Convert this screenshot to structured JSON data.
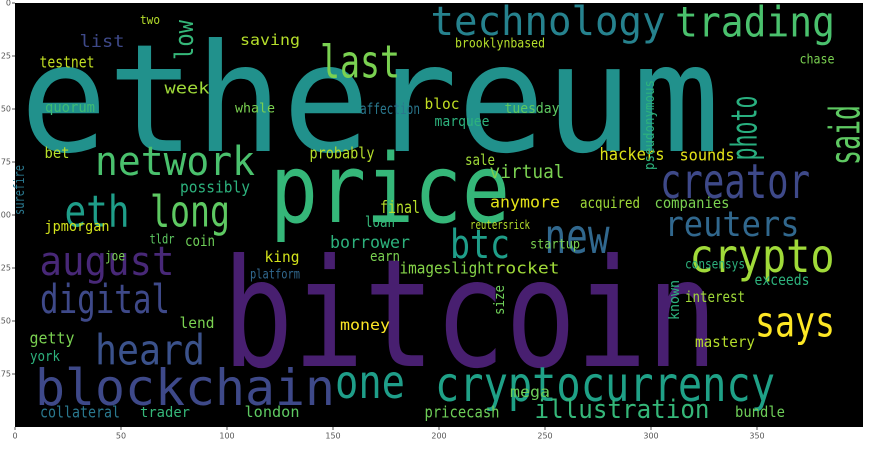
{
  "chart_data": {
    "type": "wordcloud",
    "xlim": [
      0,
      400
    ],
    "ylim": [
      200,
      0
    ],
    "xticks": [
      0,
      50,
      100,
      150,
      200,
      250,
      300,
      350
    ],
    "yticks": [
      0,
      25,
      50,
      75,
      100,
      125,
      150,
      175
    ],
    "background": "#000000",
    "words": [
      {
        "text": "ethereum",
        "color": "#21918c"
      },
      {
        "text": "bitcoin",
        "color": "#481f70"
      },
      {
        "text": "price",
        "color": "#35b779"
      },
      {
        "text": "cryptocurrency",
        "color": "#1fa187"
      },
      {
        "text": "blockchain",
        "color": "#3e4989"
      },
      {
        "text": "technology",
        "color": "#26828e"
      },
      {
        "text": "trading",
        "color": "#4ac16d"
      },
      {
        "text": "last",
        "color": "#7ad151"
      },
      {
        "text": "network",
        "color": "#4ac16d"
      },
      {
        "text": "creator",
        "color": "#3e4989"
      },
      {
        "text": "said",
        "color": "#5ec962"
      },
      {
        "text": "photo",
        "color": "#29af7f"
      },
      {
        "text": "eth",
        "color": "#1f9e89"
      },
      {
        "text": "long",
        "color": "#5ec962"
      },
      {
        "text": "new",
        "color": "#31688e"
      },
      {
        "text": "reuters",
        "color": "#31688e"
      },
      {
        "text": "btc",
        "color": "#1f9e89"
      },
      {
        "text": "crypto",
        "color": "#a0da39"
      },
      {
        "text": "august",
        "color": "#482878"
      },
      {
        "text": "digital",
        "color": "#3e4989"
      },
      {
        "text": "heard",
        "color": "#3b528b"
      },
      {
        "text": "says",
        "color": "#fde725"
      },
      {
        "text": "one",
        "color": "#1f9e89"
      },
      {
        "text": "illustration",
        "color": "#35b779"
      },
      {
        "text": "probably",
        "color": "#b5de2b"
      },
      {
        "text": "testnet",
        "color": "#c2df23"
      },
      {
        "text": "low",
        "color": "#35b779"
      },
      {
        "text": "saving",
        "color": "#b5de2b"
      },
      {
        "text": "week",
        "color": "#a0da39"
      },
      {
        "text": "whale",
        "color": "#7ad151"
      },
      {
        "text": "bloc",
        "color": "#c2df23"
      },
      {
        "text": "hackers",
        "color": "#dde318"
      },
      {
        "text": "sounds",
        "color": "#e5e419"
      },
      {
        "text": "sale",
        "color": "#a0da39"
      },
      {
        "text": "virtual",
        "color": "#7ad151"
      },
      {
        "text": "anymore",
        "color": "#e5e419"
      },
      {
        "text": "acquired",
        "color": "#a0da39"
      },
      {
        "text": "companies",
        "color": "#7ad151"
      },
      {
        "text": "final",
        "color": "#b5de2b"
      },
      {
        "text": "loan",
        "color": "#35b779"
      },
      {
        "text": "borrower",
        "color": "#2db27d"
      },
      {
        "text": "earn",
        "color": "#7ad151"
      },
      {
        "text": "king",
        "color": "#d2e21b"
      },
      {
        "text": "coin",
        "color": "#6ece58"
      },
      {
        "text": "possibly",
        "color": "#2db27d"
      },
      {
        "text": "bet",
        "color": "#b5de2b"
      },
      {
        "text": "quorum",
        "color": "#3dbc74"
      },
      {
        "text": "imageslight",
        "color": "#86d549"
      },
      {
        "text": "rocket",
        "color": "#a0da39"
      },
      {
        "text": "exceeds",
        "color": "#2db27d"
      },
      {
        "text": "interest",
        "color": "#a0da39"
      },
      {
        "text": "money",
        "color": "#fde725"
      },
      {
        "text": "lend",
        "color": "#7ad151"
      },
      {
        "text": "getty",
        "color": "#7ad151"
      },
      {
        "text": "york",
        "color": "#2db27d"
      },
      {
        "text": "mastery",
        "color": "#b5de2b"
      },
      {
        "text": "collateral",
        "color": "#2a788e"
      },
      {
        "text": "london",
        "color": "#5ec962"
      },
      {
        "text": "pricecash",
        "color": "#6ece58"
      },
      {
        "text": "mega",
        "color": "#6ece58"
      },
      {
        "text": "bundle",
        "color": "#6ece58"
      },
      {
        "text": "trader",
        "color": "#35b779"
      },
      {
        "text": "list",
        "color": "#3e4989"
      },
      {
        "text": "two",
        "color": "#b5de2b"
      },
      {
        "text": "affection",
        "color": "#2a788e"
      },
      {
        "text": "marquee",
        "color": "#2db27d"
      },
      {
        "text": "tuesday",
        "color": "#5ec962"
      },
      {
        "text": "pseudonymous",
        "color": "#2db27d"
      },
      {
        "text": "jpmorgan",
        "color": "#d2e21b"
      },
      {
        "text": "tldr",
        "color": "#5ec962"
      },
      {
        "text": "joe",
        "color": "#7ad151"
      },
      {
        "text": "platform",
        "color": "#31688e"
      },
      {
        "text": "startup",
        "color": "#7ad151"
      },
      {
        "text": "reutersrick",
        "color": "#b5de2b"
      },
      {
        "text": "consensys",
        "color": "#2db27d"
      },
      {
        "text": "surefire",
        "color": "#2a788e"
      },
      {
        "text": "brooklynbased",
        "color": "#b5de2b"
      },
      {
        "text": "chase",
        "color": "#7ad151"
      },
      {
        "text": "known",
        "color": "#2db27d"
      },
      {
        "text": "size",
        "color": "#6ece58"
      }
    ]
  }
}
